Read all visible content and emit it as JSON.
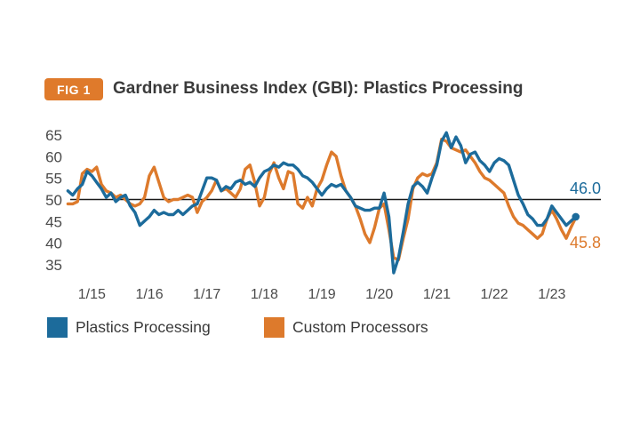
{
  "figure": {
    "badge": "FIG 1",
    "title": "Gardner Business Index (GBI): Plastics Processing"
  },
  "colors": {
    "badge_bg": "#df7a2b",
    "blue": "#1c6b9b",
    "orange": "#dd7a2c",
    "baseline": "#1a1a1a",
    "tick_text": "#4a4a4a",
    "title_text": "#3b3b3b"
  },
  "chart_data": {
    "type": "line",
    "title": "Gardner Business Index (GBI): Plastics Processing",
    "x_interval": "monthly",
    "x_start": "2014-08",
    "x_end": "2023-06",
    "x_tick_labels": [
      "1/15",
      "1/16",
      "1/17",
      "1/18",
      "1/19",
      "1/20",
      "1/21",
      "1/22",
      "1/23"
    ],
    "y_ticks": [
      65,
      60,
      55,
      50,
      45,
      40,
      35
    ],
    "ylim": [
      33,
      66
    ],
    "grid": "off",
    "baseline_value": 50,
    "legend_position": "bottom",
    "series": [
      {
        "name": "Plastics Processing",
        "color": "#1c6b9b",
        "end_label": "46.0",
        "end_value": 46.0,
        "values": [
          52,
          51,
          52.5,
          53.5,
          56.5,
          55.5,
          54,
          52.5,
          50.5,
          51.5,
          49.5,
          50.5,
          51,
          48.5,
          47,
          44,
          45,
          46,
          47.5,
          46.5,
          47,
          46.5,
          46.5,
          47.5,
          46.5,
          47.5,
          48.5,
          49,
          52,
          55,
          55,
          54.5,
          52,
          53,
          52.5,
          54,
          54.5,
          53.5,
          54,
          53,
          55,
          56.5,
          57,
          58,
          57.5,
          58.5,
          58,
          58,
          57,
          55.5,
          55,
          54,
          52.5,
          51,
          52.5,
          53.5,
          53,
          53.5,
          52,
          50.5,
          48.5,
          48,
          47.5,
          47.5,
          48,
          48,
          51.5,
          46,
          33,
          36.5,
          42.5,
          49,
          53,
          54,
          53,
          51.5,
          55,
          58,
          63.5,
          65.5,
          62,
          64.5,
          62.5,
          58.5,
          60.5,
          61,
          59,
          58,
          56.5,
          58.5,
          59.5,
          59,
          58,
          54.5,
          51,
          49,
          46.5,
          45.5,
          44,
          44,
          45.5,
          48.5,
          47,
          45.5,
          44,
          45,
          46
        ]
      },
      {
        "name": "Custom Processors",
        "color": "#dd7a2c",
        "end_label": "45.8",
        "end_value": 45.8,
        "values": [
          49,
          49,
          49.5,
          56,
          57,
          56.5,
          57.5,
          53.5,
          52,
          51.5,
          50.5,
          51,
          50,
          49,
          48.5,
          49,
          50.5,
          55.5,
          57.5,
          54,
          50.5,
          49.5,
          50,
          50,
          50.5,
          51,
          50.5,
          47,
          49.5,
          50.5,
          52,
          54.5,
          52,
          52.5,
          51.5,
          50.5,
          52.5,
          57,
          58,
          54,
          48.5,
          50.5,
          56,
          58.5,
          55,
          52.5,
          56.5,
          56,
          49,
          48,
          50.5,
          48.5,
          52.5,
          54.5,
          58,
          61,
          60,
          55.5,
          52,
          50.5,
          48.5,
          45.5,
          42,
          40,
          43.5,
          48,
          49,
          43,
          36.5,
          36,
          41,
          45.5,
          52.5,
          55,
          56,
          55.5,
          56,
          58.5,
          64,
          63.5,
          62,
          61.5,
          61,
          61.5,
          60,
          58.5,
          56.5,
          55,
          54.5,
          53.5,
          52.5,
          51.5,
          48.5,
          46,
          44.5,
          44,
          43,
          42,
          41,
          42,
          45.5,
          47.5,
          45.5,
          43,
          41,
          43.5,
          45.8
        ]
      }
    ]
  }
}
